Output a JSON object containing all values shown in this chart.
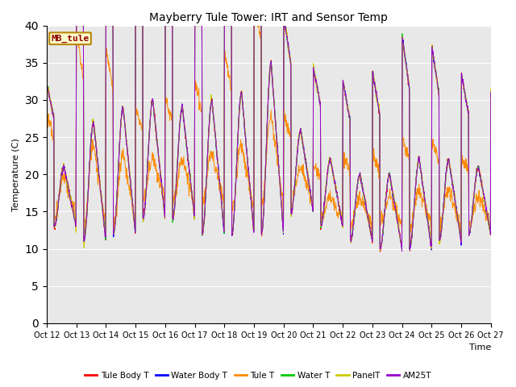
{
  "title": "Mayberry Tule Tower: IRT and Sensor Temp",
  "xlabel": "Time",
  "ylabel": "Temperature (C)",
  "ylim": [
    0,
    40
  ],
  "yticks": [
    0,
    5,
    10,
    15,
    20,
    25,
    30,
    35,
    40
  ],
  "xtick_labels": [
    "Oct 12",
    "Oct 13",
    "Oct 14",
    "Oct 15",
    "Oct 16",
    "Oct 17",
    "Oct 18",
    "Oct 19",
    "Oct 20",
    "Oct 21",
    "Oct 22",
    "Oct 23",
    "Oct 24",
    "Oct 25",
    "Oct 26",
    "Oct 27"
  ],
  "annotation_text": "MB_tule",
  "annotation_color": "#8B0000",
  "annotation_bg": "#FFFFCC",
  "annotation_border": "#B8860B",
  "bg_color": "#E8E8E8",
  "series": [
    {
      "label": "Tule Body T",
      "color": "#FF0000"
    },
    {
      "label": "Water Body T",
      "color": "#0000FF"
    },
    {
      "label": "Tule T",
      "color": "#FF8C00"
    },
    {
      "label": "Water T",
      "color": "#00CC00"
    },
    {
      "label": "PanelT",
      "color": "#CCCC00"
    },
    {
      "label": "AM25T",
      "color": "#9900CC"
    }
  ],
  "peaks": [
    21,
    27,
    29,
    30,
    29,
    30,
    31,
    35,
    26,
    22,
    20,
    20,
    22,
    22,
    21,
    20
  ],
  "nights": [
    13,
    11,
    12,
    14,
    14,
    12,
    12,
    12,
    15,
    13,
    11,
    10,
    10,
    11,
    12,
    12
  ],
  "tule_t_peaks": [
    20,
    24,
    23,
    22,
    22,
    23,
    24,
    28,
    21,
    17,
    17,
    17,
    18,
    18,
    17,
    17
  ],
  "tule_t_nights": [
    14,
    13,
    13,
    17,
    16,
    16,
    15,
    16,
    16,
    14,
    13,
    13,
    13,
    13,
    13,
    13
  ]
}
